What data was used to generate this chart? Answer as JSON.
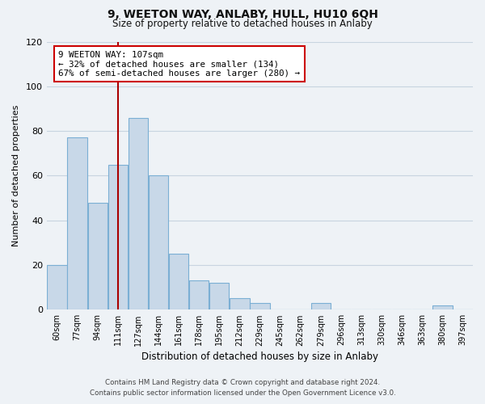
{
  "title": "9, WEETON WAY, ANLABY, HULL, HU10 6QH",
  "subtitle": "Size of property relative to detached houses in Anlaby",
  "xlabel": "Distribution of detached houses by size in Anlaby",
  "ylabel": "Number of detached properties",
  "categories": [
    "60sqm",
    "77sqm",
    "94sqm",
    "111sqm",
    "127sqm",
    "144sqm",
    "161sqm",
    "178sqm",
    "195sqm",
    "212sqm",
    "229sqm",
    "245sqm",
    "262sqm",
    "279sqm",
    "296sqm",
    "313sqm",
    "330sqm",
    "346sqm",
    "363sqm",
    "380sqm",
    "397sqm"
  ],
  "values": [
    20,
    77,
    48,
    65,
    86,
    60,
    25,
    13,
    12,
    5,
    3,
    0,
    0,
    3,
    0,
    0,
    0,
    0,
    0,
    2,
    0
  ],
  "bar_color": "#c8d8e8",
  "bar_edge_color": "#7bafd4",
  "grid_color": "#c8d4e0",
  "background_color": "#eef2f6",
  "plot_bg_color": "#eef2f6",
  "ylim": [
    0,
    120
  ],
  "yticks": [
    0,
    20,
    40,
    60,
    80,
    100,
    120
  ],
  "vline_x_index": 3,
  "vline_color": "#aa0000",
  "annotation_title": "9 WEETON WAY: 107sqm",
  "annotation_line1": "← 32% of detached houses are smaller (134)",
  "annotation_line2": "67% of semi-detached houses are larger (280) →",
  "annotation_box_facecolor": "#ffffff",
  "annotation_box_edgecolor": "#cc0000",
  "footer_line1": "Contains HM Land Registry data © Crown copyright and database right 2024.",
  "footer_line2": "Contains public sector information licensed under the Open Government Licence v3.0."
}
